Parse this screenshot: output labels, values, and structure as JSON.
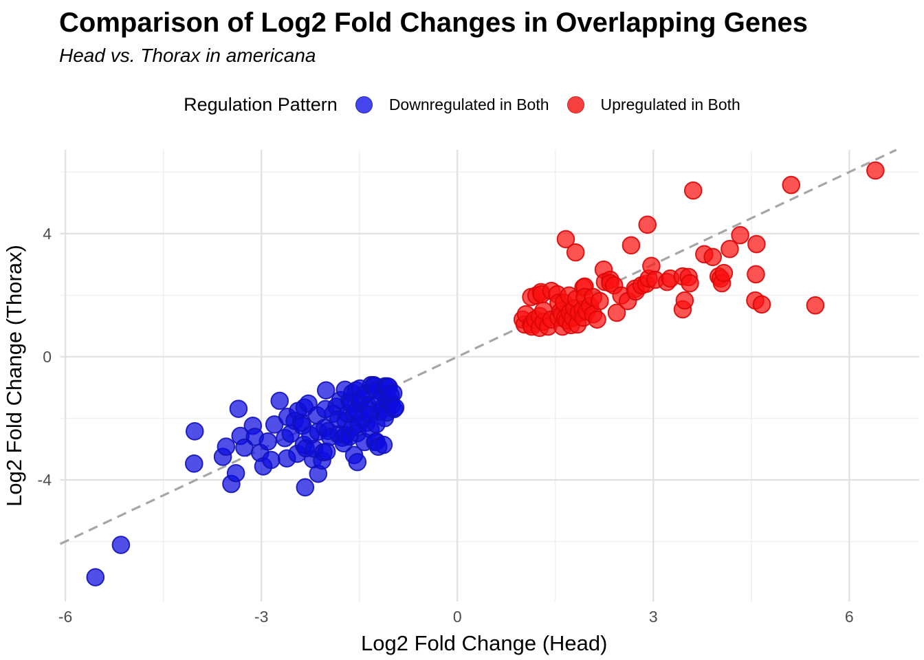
{
  "title": "Comparison of Log2 Fold Changes in Overlapping Genes",
  "subtitle": "Head vs. Thorax in americana",
  "legend": {
    "title": "Regulation Pattern",
    "items": [
      {
        "label": "Downregulated in Both",
        "swatch_color": "#4545ec",
        "swatch_border": "#2222c8"
      },
      {
        "label": "Upregulated in Both",
        "swatch_color": "#f64040",
        "swatch_border": "#d81f1f"
      }
    ]
  },
  "chart_data": {
    "type": "scatter",
    "title": "Comparison of Log2 Fold Changes in Overlapping Genes",
    "subtitle": "Head vs. Thorax in americana",
    "xlabel": "Log2 Fold Change (Head)",
    "ylabel": "Log2 Fold Change (Thorax)",
    "xlim": [
      -6.08,
      7.07
    ],
    "ylim": [
      -7.95,
      6.72
    ],
    "x_ticks": [
      -6,
      -3,
      0,
      3,
      6
    ],
    "y_ticks": [
      -4,
      0,
      4
    ],
    "x_minor_grid": [
      -4.5,
      -1.5,
      1.5,
      4.5
    ],
    "y_minor_grid": [
      -6,
      -2,
      2,
      6
    ],
    "grid": "on",
    "legend_position": "top",
    "identity_line": {
      "type": "dashed",
      "slope": 1,
      "intercept": 0,
      "color": "#a6a6a6"
    },
    "point_style": {
      "radius": 12.3,
      "fill_opacity": 0.72,
      "stroke_width": 2
    },
    "series": [
      {
        "name": "Downregulated in Both",
        "color": "#0d0de0",
        "stroke": "#1212b8",
        "points": [
          [
            -5.54,
            -7.16
          ],
          [
            -5.15,
            -6.11
          ],
          [
            -4.03,
            -3.47
          ],
          [
            -4.02,
            -2.42
          ],
          [
            -3.59,
            -3.25
          ],
          [
            -3.54,
            -2.92
          ],
          [
            -3.46,
            -4.13
          ],
          [
            -3.39,
            -3.78
          ],
          [
            -3.35,
            -1.69
          ],
          [
            -3.32,
            -2.57
          ],
          [
            -3.26,
            -2.95
          ],
          [
            -3.13,
            -2.24
          ],
          [
            -3.1,
            -2.6
          ],
          [
            -3.02,
            -3.12
          ],
          [
            -2.97,
            -3.56
          ],
          [
            -2.9,
            -2.75
          ],
          [
            -2.85,
            -3.35
          ],
          [
            -2.8,
            -2.2
          ],
          [
            -2.72,
            -1.43
          ],
          [
            -2.64,
            -2.64
          ],
          [
            -2.61,
            -3.3
          ],
          [
            -2.6,
            -1.95
          ],
          [
            -2.55,
            -2.5
          ],
          [
            -2.49,
            -2.08
          ],
          [
            -2.45,
            -3.15
          ],
          [
            -2.44,
            -1.76
          ],
          [
            -2.39,
            -2.14
          ],
          [
            -2.37,
            -2.24
          ],
          [
            -2.35,
            -2.86
          ],
          [
            -2.34,
            -1.65
          ],
          [
            -2.33,
            -4.24
          ],
          [
            -2.32,
            -2.97
          ],
          [
            -2.28,
            -1.52
          ],
          [
            -2.25,
            -2.55
          ],
          [
            -2.21,
            -3.33
          ],
          [
            -2.19,
            -2.99
          ],
          [
            -2.15,
            -1.9
          ],
          [
            -2.13,
            -3.8
          ],
          [
            -2.13,
            -2.43
          ],
          [
            -2.07,
            -3.37
          ],
          [
            -2.05,
            -3.1
          ],
          [
            -2.03,
            -2.31
          ],
          [
            -2.02,
            -1.7
          ],
          [
            -2.01,
            -1.09
          ],
          [
            -2.0,
            -3.08
          ],
          [
            -1.98,
            -2.41
          ],
          [
            -1.95,
            -2.6
          ],
          [
            -1.9,
            -1.85
          ],
          [
            -1.85,
            -1.62
          ],
          [
            -1.82,
            -2.03
          ],
          [
            -1.82,
            -2.52
          ],
          [
            -1.79,
            -1.41
          ],
          [
            -1.76,
            -2.63
          ],
          [
            -1.74,
            -2.81
          ],
          [
            -1.72,
            -1.07
          ],
          [
            -1.71,
            -2.08
          ],
          [
            -1.71,
            -2.54
          ],
          [
            -1.68,
            -1.85
          ],
          [
            -1.65,
            -1.43
          ],
          [
            -1.65,
            -2.59
          ],
          [
            -1.63,
            -1.52
          ],
          [
            -1.61,
            -1.18
          ],
          [
            -1.6,
            -2.3
          ],
          [
            -1.58,
            -1.85
          ],
          [
            -1.58,
            -3.19
          ],
          [
            -1.55,
            -1.75
          ],
          [
            -1.55,
            -1.09
          ],
          [
            -1.53,
            -2.48
          ],
          [
            -1.53,
            -3.42
          ],
          [
            -1.51,
            -2.19
          ],
          [
            -1.49,
            -1.03
          ],
          [
            -1.49,
            -1.47
          ],
          [
            -1.47,
            -1.36
          ],
          [
            -1.45,
            -2.0
          ],
          [
            -1.42,
            -2.77
          ],
          [
            -1.39,
            -1.18
          ],
          [
            -1.39,
            -2.14
          ],
          [
            -1.37,
            -1.58
          ],
          [
            -1.35,
            -1.72
          ],
          [
            -1.34,
            -1.88
          ],
          [
            -1.33,
            -2.35
          ],
          [
            -1.32,
            -0.92
          ],
          [
            -1.28,
            -0.92
          ],
          [
            -1.26,
            -0.95
          ],
          [
            -1.26,
            -2.77
          ],
          [
            -1.24,
            -2.19
          ],
          [
            -1.24,
            -2.75
          ],
          [
            -1.23,
            -1.09
          ],
          [
            -1.21,
            -2.92
          ],
          [
            -1.19,
            -1.41
          ],
          [
            -1.18,
            -1.78
          ],
          [
            -1.14,
            -1.65
          ],
          [
            -1.13,
            -1.21
          ],
          [
            -1.13,
            -2.86
          ],
          [
            -1.11,
            -0.96
          ],
          [
            -1.11,
            -1.99
          ],
          [
            -1.08,
            -1.45
          ],
          [
            -1.08,
            -1.81
          ],
          [
            -1.07,
            -0.96
          ],
          [
            -1.05,
            -0.98
          ],
          [
            -1.03,
            -1.43
          ],
          [
            -1.02,
            -1.25
          ],
          [
            -1.0,
            -1.58
          ],
          [
            -0.98,
            -1.18
          ],
          [
            -0.97,
            -1.7
          ],
          [
            -0.95,
            -1.65
          ]
        ]
      },
      {
        "name": "Upregulated in Both",
        "color": "#fb1111",
        "stroke": "#d90707",
        "points": [
          [
            1.0,
            1.21
          ],
          [
            1.03,
            1.05
          ],
          [
            1.05,
            1.38
          ],
          [
            1.13,
            1.94
          ],
          [
            1.13,
            1.05
          ],
          [
            1.14,
            0.98
          ],
          [
            1.19,
            1.21
          ],
          [
            1.21,
            1.99
          ],
          [
            1.26,
            1.32
          ],
          [
            1.26,
            0.94
          ],
          [
            1.28,
            2.1
          ],
          [
            1.29,
            2.03
          ],
          [
            1.32,
            1.14
          ],
          [
            1.32,
            1.5
          ],
          [
            1.39,
            0.98
          ],
          [
            1.44,
            2.14
          ],
          [
            1.44,
            1.21
          ],
          [
            1.53,
            2.03
          ],
          [
            1.55,
            1.76
          ],
          [
            1.55,
            1.27
          ],
          [
            1.58,
            1.47
          ],
          [
            1.6,
            1.38
          ],
          [
            1.61,
            0.98
          ],
          [
            1.63,
            1.76
          ],
          [
            1.65,
            1.25
          ],
          [
            1.66,
            3.82
          ],
          [
            1.68,
            1.18
          ],
          [
            1.71,
            1.99
          ],
          [
            1.72,
            1.43
          ],
          [
            1.74,
            1.03
          ],
          [
            1.77,
            1.27
          ],
          [
            1.79,
            1.58
          ],
          [
            1.81,
            3.39
          ],
          [
            1.82,
            1.88
          ],
          [
            1.84,
            1.05
          ],
          [
            1.86,
            1.43
          ],
          [
            1.92,
            1.54
          ],
          [
            1.93,
            2.25
          ],
          [
            1.93,
            1.27
          ],
          [
            1.95,
            2.28
          ],
          [
            1.95,
            1.94
          ],
          [
            1.98,
            1.47
          ],
          [
            2.03,
            1.65
          ],
          [
            2.08,
            1.94
          ],
          [
            2.08,
            1.38
          ],
          [
            2.14,
            1.21
          ],
          [
            2.18,
            1.81
          ],
          [
            2.24,
            2.83
          ],
          [
            2.26,
            2.43
          ],
          [
            2.34,
            2.5
          ],
          [
            2.34,
            2.39
          ],
          [
            2.4,
            2.32
          ],
          [
            2.44,
            1.43
          ],
          [
            2.51,
            1.99
          ],
          [
            2.61,
            1.81
          ],
          [
            2.66,
            3.62
          ],
          [
            2.72,
            2.21
          ],
          [
            2.73,
            2.12
          ],
          [
            2.82,
            2.32
          ],
          [
            2.89,
            2.37
          ],
          [
            2.91,
            4.29
          ],
          [
            2.93,
            2.54
          ],
          [
            2.97,
            2.95
          ],
          [
            3.03,
            2.5
          ],
          [
            3.21,
            2.43
          ],
          [
            3.26,
            2.54
          ],
          [
            3.45,
            2.61
          ],
          [
            3.45,
            1.54
          ],
          [
            3.48,
            1.83
          ],
          [
            3.54,
            2.59
          ],
          [
            3.56,
            2.39
          ],
          [
            3.61,
            5.4
          ],
          [
            3.78,
            3.33
          ],
          [
            3.91,
            3.24
          ],
          [
            4.0,
            2.61
          ],
          [
            4.03,
            2.54
          ],
          [
            4.05,
            2.39
          ],
          [
            4.08,
            2.72
          ],
          [
            4.17,
            3.5
          ],
          [
            4.33,
            3.95
          ],
          [
            4.56,
            1.83
          ],
          [
            4.57,
            2.68
          ],
          [
            4.58,
            3.66
          ],
          [
            4.66,
            1.7
          ],
          [
            5.11,
            5.58
          ],
          [
            5.48,
            1.67
          ],
          [
            6.4,
            6.05
          ]
        ]
      }
    ]
  }
}
